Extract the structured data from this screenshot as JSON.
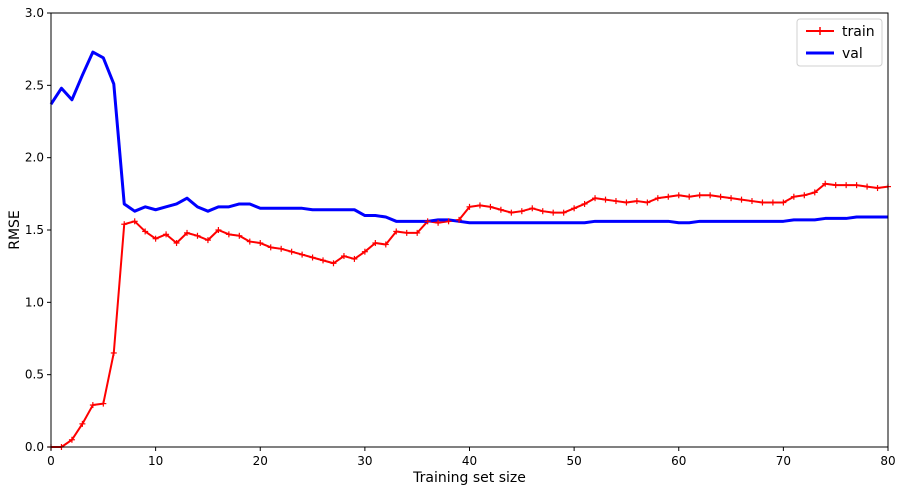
{
  "chart_data": {
    "type": "line",
    "xlabel": "Training set size",
    "ylabel": "RMSE",
    "xlim": [
      0,
      80
    ],
    "ylim": [
      0,
      3.0
    ],
    "xticks": [
      "0",
      "10",
      "20",
      "30",
      "40",
      "50",
      "60",
      "70",
      "80"
    ],
    "yticks": [
      "0.0",
      "0.5",
      "1.0",
      "1.5",
      "2.0",
      "2.5",
      "3.0"
    ],
    "grid": false,
    "legend": "top-right",
    "series": [
      {
        "name": "train",
        "color": "#ff0000",
        "marker": "+",
        "x": [
          0,
          1,
          2,
          3,
          4,
          5,
          6,
          7,
          8,
          9,
          10,
          11,
          12,
          13,
          14,
          15,
          16,
          17,
          18,
          19,
          20,
          21,
          22,
          23,
          24,
          25,
          26,
          27,
          28,
          29,
          30,
          31,
          32,
          33,
          34,
          35,
          36,
          37,
          38,
          39,
          40,
          41,
          42,
          43,
          44,
          45,
          46,
          47,
          48,
          49,
          50,
          51,
          52,
          53,
          54,
          55,
          56,
          57,
          58,
          59,
          60,
          61,
          62,
          63,
          64,
          65,
          66,
          67,
          68,
          69,
          70,
          71,
          72,
          73,
          74,
          75,
          76,
          77,
          78,
          79,
          80
        ],
        "values": [
          0.0,
          0.0,
          0.05,
          0.16,
          0.29,
          0.3,
          0.65,
          1.54,
          1.56,
          1.49,
          1.44,
          1.47,
          1.41,
          1.48,
          1.46,
          1.43,
          1.5,
          1.47,
          1.46,
          1.42,
          1.41,
          1.38,
          1.37,
          1.35,
          1.33,
          1.31,
          1.29,
          1.27,
          1.32,
          1.3,
          1.35,
          1.41,
          1.4,
          1.49,
          1.48,
          1.48,
          1.56,
          1.55,
          1.56,
          1.57,
          1.66,
          1.67,
          1.66,
          1.64,
          1.62,
          1.63,
          1.65,
          1.63,
          1.62,
          1.62,
          1.65,
          1.68,
          1.72,
          1.71,
          1.7,
          1.69,
          1.7,
          1.69,
          1.72,
          1.73,
          1.74,
          1.73,
          1.74,
          1.74,
          1.73,
          1.72,
          1.71,
          1.7,
          1.69,
          1.69,
          1.69,
          1.73,
          1.74,
          1.76,
          1.82,
          1.81,
          1.81,
          1.81,
          1.8,
          1.79,
          1.8
        ]
      },
      {
        "name": "val",
        "color": "#0000ff",
        "marker": "",
        "x": [
          0,
          1,
          2,
          3,
          4,
          5,
          6,
          7,
          8,
          9,
          10,
          11,
          12,
          13,
          14,
          15,
          16,
          17,
          18,
          19,
          20,
          21,
          22,
          23,
          24,
          25,
          26,
          27,
          28,
          29,
          30,
          31,
          32,
          33,
          34,
          35,
          36,
          37,
          38,
          39,
          40,
          41,
          42,
          43,
          44,
          45,
          46,
          47,
          48,
          49,
          50,
          51,
          52,
          53,
          54,
          55,
          56,
          57,
          58,
          59,
          60,
          61,
          62,
          63,
          64,
          65,
          66,
          67,
          68,
          69,
          70,
          71,
          72,
          73,
          74,
          75,
          76,
          77,
          78,
          79,
          80
        ],
        "values": [
          2.37,
          2.48,
          2.4,
          2.57,
          2.73,
          2.69,
          2.51,
          1.68,
          1.63,
          1.66,
          1.64,
          1.66,
          1.68,
          1.72,
          1.66,
          1.63,
          1.66,
          1.66,
          1.68,
          1.68,
          1.65,
          1.65,
          1.65,
          1.65,
          1.65,
          1.64,
          1.64,
          1.64,
          1.64,
          1.64,
          1.6,
          1.6,
          1.59,
          1.56,
          1.56,
          1.56,
          1.56,
          1.57,
          1.57,
          1.56,
          1.55,
          1.55,
          1.55,
          1.55,
          1.55,
          1.55,
          1.55,
          1.55,
          1.55,
          1.55,
          1.55,
          1.55,
          1.56,
          1.56,
          1.56,
          1.56,
          1.56,
          1.56,
          1.56,
          1.56,
          1.55,
          1.55,
          1.56,
          1.56,
          1.56,
          1.56,
          1.56,
          1.56,
          1.56,
          1.56,
          1.56,
          1.57,
          1.57,
          1.57,
          1.58,
          1.58,
          1.58,
          1.59,
          1.59,
          1.59,
          1.59
        ]
      }
    ]
  }
}
